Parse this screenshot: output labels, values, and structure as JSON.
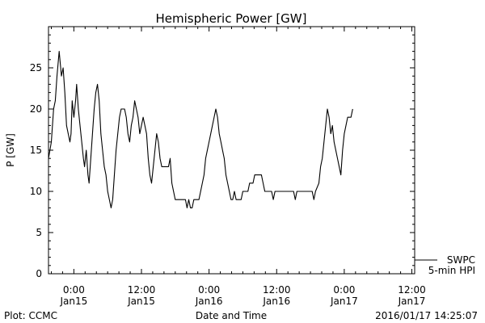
{
  "chart_data": {
    "type": "line",
    "title": "Hemispheric Power [GW]",
    "ylabel": "P [GW]",
    "xlabel": "Date and Time",
    "ylim": [
      0,
      30
    ],
    "xlim": [
      -4.5,
      60.5
    ],
    "yticks": [
      0,
      5,
      10,
      15,
      20,
      25
    ],
    "xticks": [
      {
        "x": 0,
        "time": "0:00",
        "date": "Jan15"
      },
      {
        "x": 12,
        "time": "12:00",
        "date": "Jan15"
      },
      {
        "x": 24,
        "time": "0:00",
        "date": "Jan16"
      },
      {
        "x": 36,
        "time": "12:00",
        "date": "Jan16"
      },
      {
        "x": 48,
        "time": "0:00",
        "date": "Jan17"
      },
      {
        "x": 60,
        "time": "12:00",
        "date": "Jan17"
      }
    ],
    "x_unit": "hours from 2016-01-15 00:00 UT",
    "series": [
      {
        "name": "SWPC",
        "color": "#000000",
        "points": [
          [
            -4.5,
            14
          ],
          [
            -4.0,
            16
          ],
          [
            -3.6,
            20
          ],
          [
            -3.3,
            21
          ],
          [
            -3.0,
            24
          ],
          [
            -2.6,
            27
          ],
          [
            -2.2,
            24
          ],
          [
            -1.9,
            25
          ],
          [
            -1.6,
            22
          ],
          [
            -1.3,
            18
          ],
          [
            -1.0,
            17
          ],
          [
            -0.7,
            16
          ],
          [
            -0.5,
            17
          ],
          [
            -0.3,
            21
          ],
          [
            0.0,
            19
          ],
          [
            0.3,
            21
          ],
          [
            0.5,
            23
          ],
          [
            0.8,
            20
          ],
          [
            1.1,
            18
          ],
          [
            1.4,
            16
          ],
          [
            1.7,
            14
          ],
          [
            1.9,
            13
          ],
          [
            2.2,
            15
          ],
          [
            2.5,
            12
          ],
          [
            2.7,
            11
          ],
          [
            3.0,
            14
          ],
          [
            3.3,
            17
          ],
          [
            3.6,
            20
          ],
          [
            3.9,
            22
          ],
          [
            4.2,
            23
          ],
          [
            4.5,
            21
          ],
          [
            4.8,
            17
          ],
          [
            5.1,
            15
          ],
          [
            5.4,
            13
          ],
          [
            5.7,
            12
          ],
          [
            6.0,
            10
          ],
          [
            6.3,
            9
          ],
          [
            6.6,
            8
          ],
          [
            6.9,
            9
          ],
          [
            7.2,
            12
          ],
          [
            7.5,
            15
          ],
          [
            7.8,
            17
          ],
          [
            8.1,
            19
          ],
          [
            8.4,
            20
          ],
          [
            9.0,
            20
          ],
          [
            9.3,
            19
          ],
          [
            9.6,
            17
          ],
          [
            9.9,
            16
          ],
          [
            10.2,
            18
          ],
          [
            10.5,
            19
          ],
          [
            10.8,
            21
          ],
          [
            11.1,
            20
          ],
          [
            11.4,
            19
          ],
          [
            11.7,
            17
          ],
          [
            12.0,
            18
          ],
          [
            12.3,
            19
          ],
          [
            12.6,
            18
          ],
          [
            12.9,
            17
          ],
          [
            13.2,
            14
          ],
          [
            13.5,
            12
          ],
          [
            13.8,
            11
          ],
          [
            14.1,
            13
          ],
          [
            14.4,
            15
          ],
          [
            14.7,
            17
          ],
          [
            15.0,
            16
          ],
          [
            15.3,
            14
          ],
          [
            15.6,
            13
          ],
          [
            16.8,
            13
          ],
          [
            17.1,
            14
          ],
          [
            17.4,
            11
          ],
          [
            17.7,
            10
          ],
          [
            18.0,
            9
          ],
          [
            19.8,
            9
          ],
          [
            20.1,
            8
          ],
          [
            20.4,
            9
          ],
          [
            20.7,
            8
          ],
          [
            21.0,
            8
          ],
          [
            21.3,
            9
          ],
          [
            21.6,
            9
          ],
          [
            22.2,
            9
          ],
          [
            22.5,
            10
          ],
          [
            22.8,
            11
          ],
          [
            23.1,
            12
          ],
          [
            23.4,
            14
          ],
          [
            23.7,
            15
          ],
          [
            24.0,
            16
          ],
          [
            24.3,
            17
          ],
          [
            24.6,
            18
          ],
          [
            24.9,
            19
          ],
          [
            25.2,
            20
          ],
          [
            25.5,
            19
          ],
          [
            25.8,
            17
          ],
          [
            26.1,
            16
          ],
          [
            26.4,
            15
          ],
          [
            26.7,
            14
          ],
          [
            27.0,
            12
          ],
          [
            27.3,
            11
          ],
          [
            27.6,
            10
          ],
          [
            27.9,
            9
          ],
          [
            28.2,
            9
          ],
          [
            28.5,
            10
          ],
          [
            28.8,
            9
          ],
          [
            29.1,
            9
          ],
          [
            29.7,
            9
          ],
          [
            30.0,
            10
          ],
          [
            30.9,
            10
          ],
          [
            31.2,
            11
          ],
          [
            31.8,
            11
          ],
          [
            32.1,
            12
          ],
          [
            33.3,
            12
          ],
          [
            33.6,
            11
          ],
          [
            33.9,
            10
          ],
          [
            35.1,
            10
          ],
          [
            35.4,
            9
          ],
          [
            35.7,
            10
          ],
          [
            39.0,
            10
          ],
          [
            39.3,
            9
          ],
          [
            39.6,
            10
          ],
          [
            42.3,
            10
          ],
          [
            42.6,
            9
          ],
          [
            42.9,
            10
          ],
          [
            43.5,
            11
          ],
          [
            43.8,
            13
          ],
          [
            44.1,
            14
          ],
          [
            44.4,
            16
          ],
          [
            44.7,
            18
          ],
          [
            45.0,
            20
          ],
          [
            45.3,
            19
          ],
          [
            45.6,
            17
          ],
          [
            45.9,
            18
          ],
          [
            46.2,
            16
          ],
          [
            46.5,
            15
          ],
          [
            46.8,
            14
          ],
          [
            47.1,
            13
          ],
          [
            47.4,
            12
          ],
          [
            47.7,
            15
          ],
          [
            48.0,
            17
          ],
          [
            48.3,
            18
          ],
          [
            48.6,
            19
          ],
          [
            49.2,
            19
          ],
          [
            49.5,
            20
          ]
        ]
      }
    ],
    "legend": {
      "placement": "right-bottom",
      "entries": [
        "SWPC",
        "5-min HPI"
      ]
    }
  },
  "footer": {
    "left": "Plot: CCMC",
    "center": "Date and Time",
    "right": "2016/01/17 14:25:07"
  }
}
